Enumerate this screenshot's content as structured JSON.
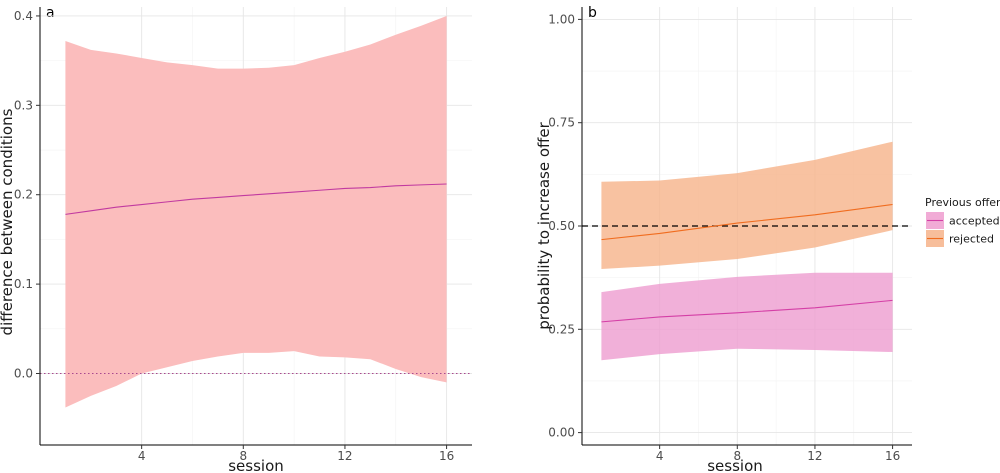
{
  "chart_data": [
    {
      "type": "line",
      "panel_label": "a",
      "xlabel": "session",
      "ylabel": "difference between conditions",
      "xlim": [
        0,
        17
      ],
      "ylim": [
        -0.08,
        0.41
      ],
      "x_ticks": [
        4,
        8,
        12,
        16
      ],
      "y_ticks": [
        0.0,
        0.1,
        0.2,
        0.3,
        0.4
      ],
      "y_tick_labels": [
        "0.0",
        "0.1",
        "0.2",
        "0.3",
        "0.4"
      ],
      "grid": true,
      "reference_line": {
        "y": 0.0,
        "style": "dotted",
        "color": "#a9488f"
      },
      "series": [
        {
          "name": "difference",
          "color": "#c13aa0",
          "band_color": "#fbbdbd",
          "x": [
            1,
            2,
            3,
            4,
            5,
            6,
            7,
            8,
            9,
            10,
            11,
            12,
            13,
            14,
            15,
            16
          ],
          "values": [
            0.178,
            0.182,
            0.186,
            0.189,
            0.192,
            0.195,
            0.197,
            0.199,
            0.201,
            0.203,
            0.205,
            0.207,
            0.208,
            0.21,
            0.211,
            0.212
          ],
          "upper": [
            0.372,
            0.362,
            0.358,
            0.353,
            0.348,
            0.345,
            0.341,
            0.341,
            0.342,
            0.345,
            0.353,
            0.36,
            0.368,
            0.379,
            0.389,
            0.4
          ],
          "lower": [
            -0.038,
            -0.025,
            -0.014,
            0.0,
            0.007,
            0.014,
            0.019,
            0.023,
            0.023,
            0.025,
            0.019,
            0.018,
            0.016,
            0.005,
            -0.004,
            -0.01
          ]
        }
      ]
    },
    {
      "type": "line",
      "panel_label": "b",
      "xlabel": "session",
      "ylabel": "probability to increase offer",
      "xlim": [
        0,
        17
      ],
      "ylim": [
        -0.03,
        1.03
      ],
      "x_ticks": [
        4,
        8,
        12,
        16
      ],
      "y_ticks": [
        0.0,
        0.25,
        0.5,
        0.75,
        1.0
      ],
      "y_tick_labels": [
        "0.00",
        "0.25",
        "0.50",
        "0.75",
        "1.00"
      ],
      "grid": true,
      "reference_line": {
        "y": 0.5,
        "style": "dashed",
        "color": "#000000"
      },
      "legend_title": "Previous offer",
      "legend_position": "right",
      "series": [
        {
          "name": "accepted",
          "color": "#d43fa6",
          "band_color": "#ee9ccf",
          "x": [
            1,
            4,
            8,
            12,
            16
          ],
          "values": [
            0.268,
            0.28,
            0.29,
            0.302,
            0.32
          ],
          "upper": [
            0.34,
            0.36,
            0.377,
            0.387,
            0.387
          ],
          "lower": [
            0.175,
            0.19,
            0.203,
            0.2,
            0.195
          ]
        },
        {
          "name": "rejected",
          "color": "#f06c1f",
          "band_color": "#f6b38a",
          "x": [
            1,
            4,
            8,
            12,
            16
          ],
          "values": [
            0.467,
            0.482,
            0.507,
            0.527,
            0.552
          ],
          "upper": [
            0.607,
            0.61,
            0.628,
            0.66,
            0.704
          ],
          "lower": [
            0.396,
            0.404,
            0.42,
            0.448,
            0.49
          ]
        }
      ]
    }
  ]
}
